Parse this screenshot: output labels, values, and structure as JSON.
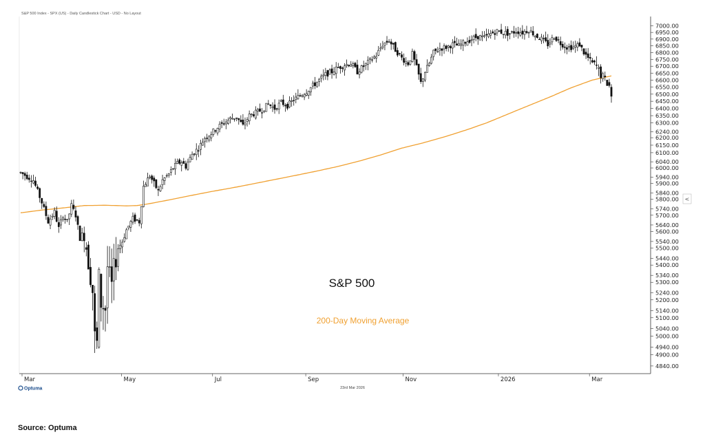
{
  "header": {
    "title": "S&P 500 Index - SPX (US) - Daily Candlestick Chart - USD - No Layout"
  },
  "footer": {
    "source": "Source: Optuma",
    "logo_text": "Optuma",
    "date_label": "23rd Mar 2026"
  },
  "colors": {
    "candle": "#111111",
    "moving_average": "#f0a030",
    "axis": "#333333",
    "background": "#ffffff"
  },
  "chart_data": {
    "type": "candlestick",
    "title": "",
    "y_scale": "log",
    "ylim": [
      4800,
      7050
    ],
    "y_ticks": [
      4840,
      4900,
      4940,
      5000,
      5040,
      5100,
      5140,
      5200,
      5240,
      5300,
      5340,
      5400,
      5440,
      5500,
      5540,
      5600,
      5640,
      5700,
      5740,
      5800,
      5840,
      5900,
      5940,
      6000,
      6040,
      6100,
      6150,
      6200,
      6240,
      6300,
      6350,
      6400,
      6450,
      6500,
      6550,
      6600,
      6650,
      6700,
      6750,
      6800,
      6850,
      6900,
      6950,
      7000
    ],
    "x_ticks": [
      "Mar",
      "May",
      "Jul",
      "Sep",
      "Nov",
      "2026",
      "Mar"
    ],
    "annotations": [
      "S&P 500",
      "200-Day Moving Average"
    ],
    "price_path": [
      [
        0,
        5970
      ],
      [
        6,
        5920
      ],
      [
        10,
        5780
      ],
      [
        13,
        5660
      ],
      [
        16,
        5720
      ],
      [
        18,
        5620
      ],
      [
        20,
        5700
      ],
      [
        22,
        5660
      ],
      [
        24,
        5760
      ],
      [
        26,
        5700
      ],
      [
        28,
        5560
      ],
      [
        30,
        5600
      ],
      [
        32,
        5420
      ],
      [
        34,
        5250
      ],
      [
        35,
        5000
      ],
      [
        36,
        4960
      ],
      [
        37,
        5330
      ],
      [
        38,
        5180
      ],
      [
        40,
        5150
      ],
      [
        41,
        5390
      ],
      [
        43,
        5280
      ],
      [
        44,
        5380
      ],
      [
        46,
        5500
      ],
      [
        48,
        5540
      ],
      [
        50,
        5610
      ],
      [
        53,
        5680
      ],
      [
        56,
        5660
      ],
      [
        58,
        5880
      ],
      [
        61,
        5950
      ],
      [
        63,
        5900
      ],
      [
        65,
        5850
      ],
      [
        67,
        5920
      ],
      [
        70,
        5960
      ],
      [
        72,
        6000
      ],
      [
        74,
        6030
      ],
      [
        76,
        6040
      ],
      [
        78,
        6010
      ],
      [
        81,
        6090
      ],
      [
        84,
        6130
      ],
      [
        87,
        6200
      ],
      [
        90,
        6230
      ],
      [
        93,
        6270
      ],
      [
        96,
        6300
      ],
      [
        99,
        6330
      ],
      [
        102,
        6340
      ],
      [
        105,
        6280
      ],
      [
        108,
        6350
      ],
      [
        111,
        6370
      ],
      [
        114,
        6390
      ],
      [
        117,
        6430
      ],
      [
        120,
        6400
      ],
      [
        123,
        6440
      ],
      [
        126,
        6420
      ],
      [
        129,
        6460
      ],
      [
        132,
        6490
      ],
      [
        135,
        6520
      ],
      [
        138,
        6560
      ],
      [
        141,
        6600
      ],
      [
        144,
        6640
      ],
      [
        147,
        6660
      ],
      [
        150,
        6690
      ],
      [
        153,
        6710
      ],
      [
        156,
        6720
      ],
      [
        159,
        6660
      ],
      [
        162,
        6700
      ],
      [
        165,
        6740
      ],
      [
        168,
        6780
      ],
      [
        171,
        6860
      ],
      [
        174,
        6890
      ],
      [
        177,
        6820
      ],
      [
        180,
        6760
      ],
      [
        183,
        6720
      ],
      [
        185,
        6790
      ],
      [
        187,
        6690
      ],
      [
        189,
        6580
      ],
      [
        191,
        6660
      ],
      [
        193,
        6720
      ],
      [
        195,
        6800
      ],
      [
        198,
        6830
      ],
      [
        201,
        6840
      ],
      [
        204,
        6860
      ],
      [
        207,
        6850
      ],
      [
        210,
        6880
      ],
      [
        213,
        6900
      ],
      [
        216,
        6920
      ],
      [
        219,
        6910
      ],
      [
        222,
        6940
      ],
      [
        225,
        6960
      ],
      [
        228,
        6950
      ],
      [
        231,
        6940
      ],
      [
        234,
        6960
      ],
      [
        237,
        6950
      ],
      [
        240,
        6970
      ],
      [
        243,
        6930
      ],
      [
        246,
        6900
      ],
      [
        249,
        6860
      ],
      [
        252,
        6920
      ],
      [
        255,
        6870
      ],
      [
        258,
        6840
      ],
      [
        261,
        6840
      ],
      [
        264,
        6860
      ],
      [
        266,
        6800
      ],
      [
        268,
        6760
      ],
      [
        270,
        6720
      ],
      [
        272,
        6700
      ],
      [
        274,
        6640
      ],
      [
        276,
        6600
      ],
      [
        278,
        6560
      ],
      [
        279,
        6490
      ]
    ],
    "moving_average_path": [
      [
        0,
        5715
      ],
      [
        10,
        5732
      ],
      [
        20,
        5745
      ],
      [
        30,
        5760
      ],
      [
        40,
        5762
      ],
      [
        50,
        5758
      ],
      [
        55,
        5760
      ],
      [
        60,
        5770
      ],
      [
        70,
        5795
      ],
      [
        80,
        5822
      ],
      [
        90,
        5848
      ],
      [
        100,
        5872
      ],
      [
        110,
        5898
      ],
      [
        120,
        5925
      ],
      [
        130,
        5952
      ],
      [
        140,
        5980
      ],
      [
        150,
        6010
      ],
      [
        160,
        6045
      ],
      [
        170,
        6085
      ],
      [
        180,
        6130
      ],
      [
        190,
        6165
      ],
      [
        200,
        6205
      ],
      [
        210,
        6250
      ],
      [
        220,
        6300
      ],
      [
        230,
        6360
      ],
      [
        240,
        6420
      ],
      [
        250,
        6480
      ],
      [
        260,
        6545
      ],
      [
        270,
        6600
      ],
      [
        279,
        6630
      ]
    ]
  }
}
